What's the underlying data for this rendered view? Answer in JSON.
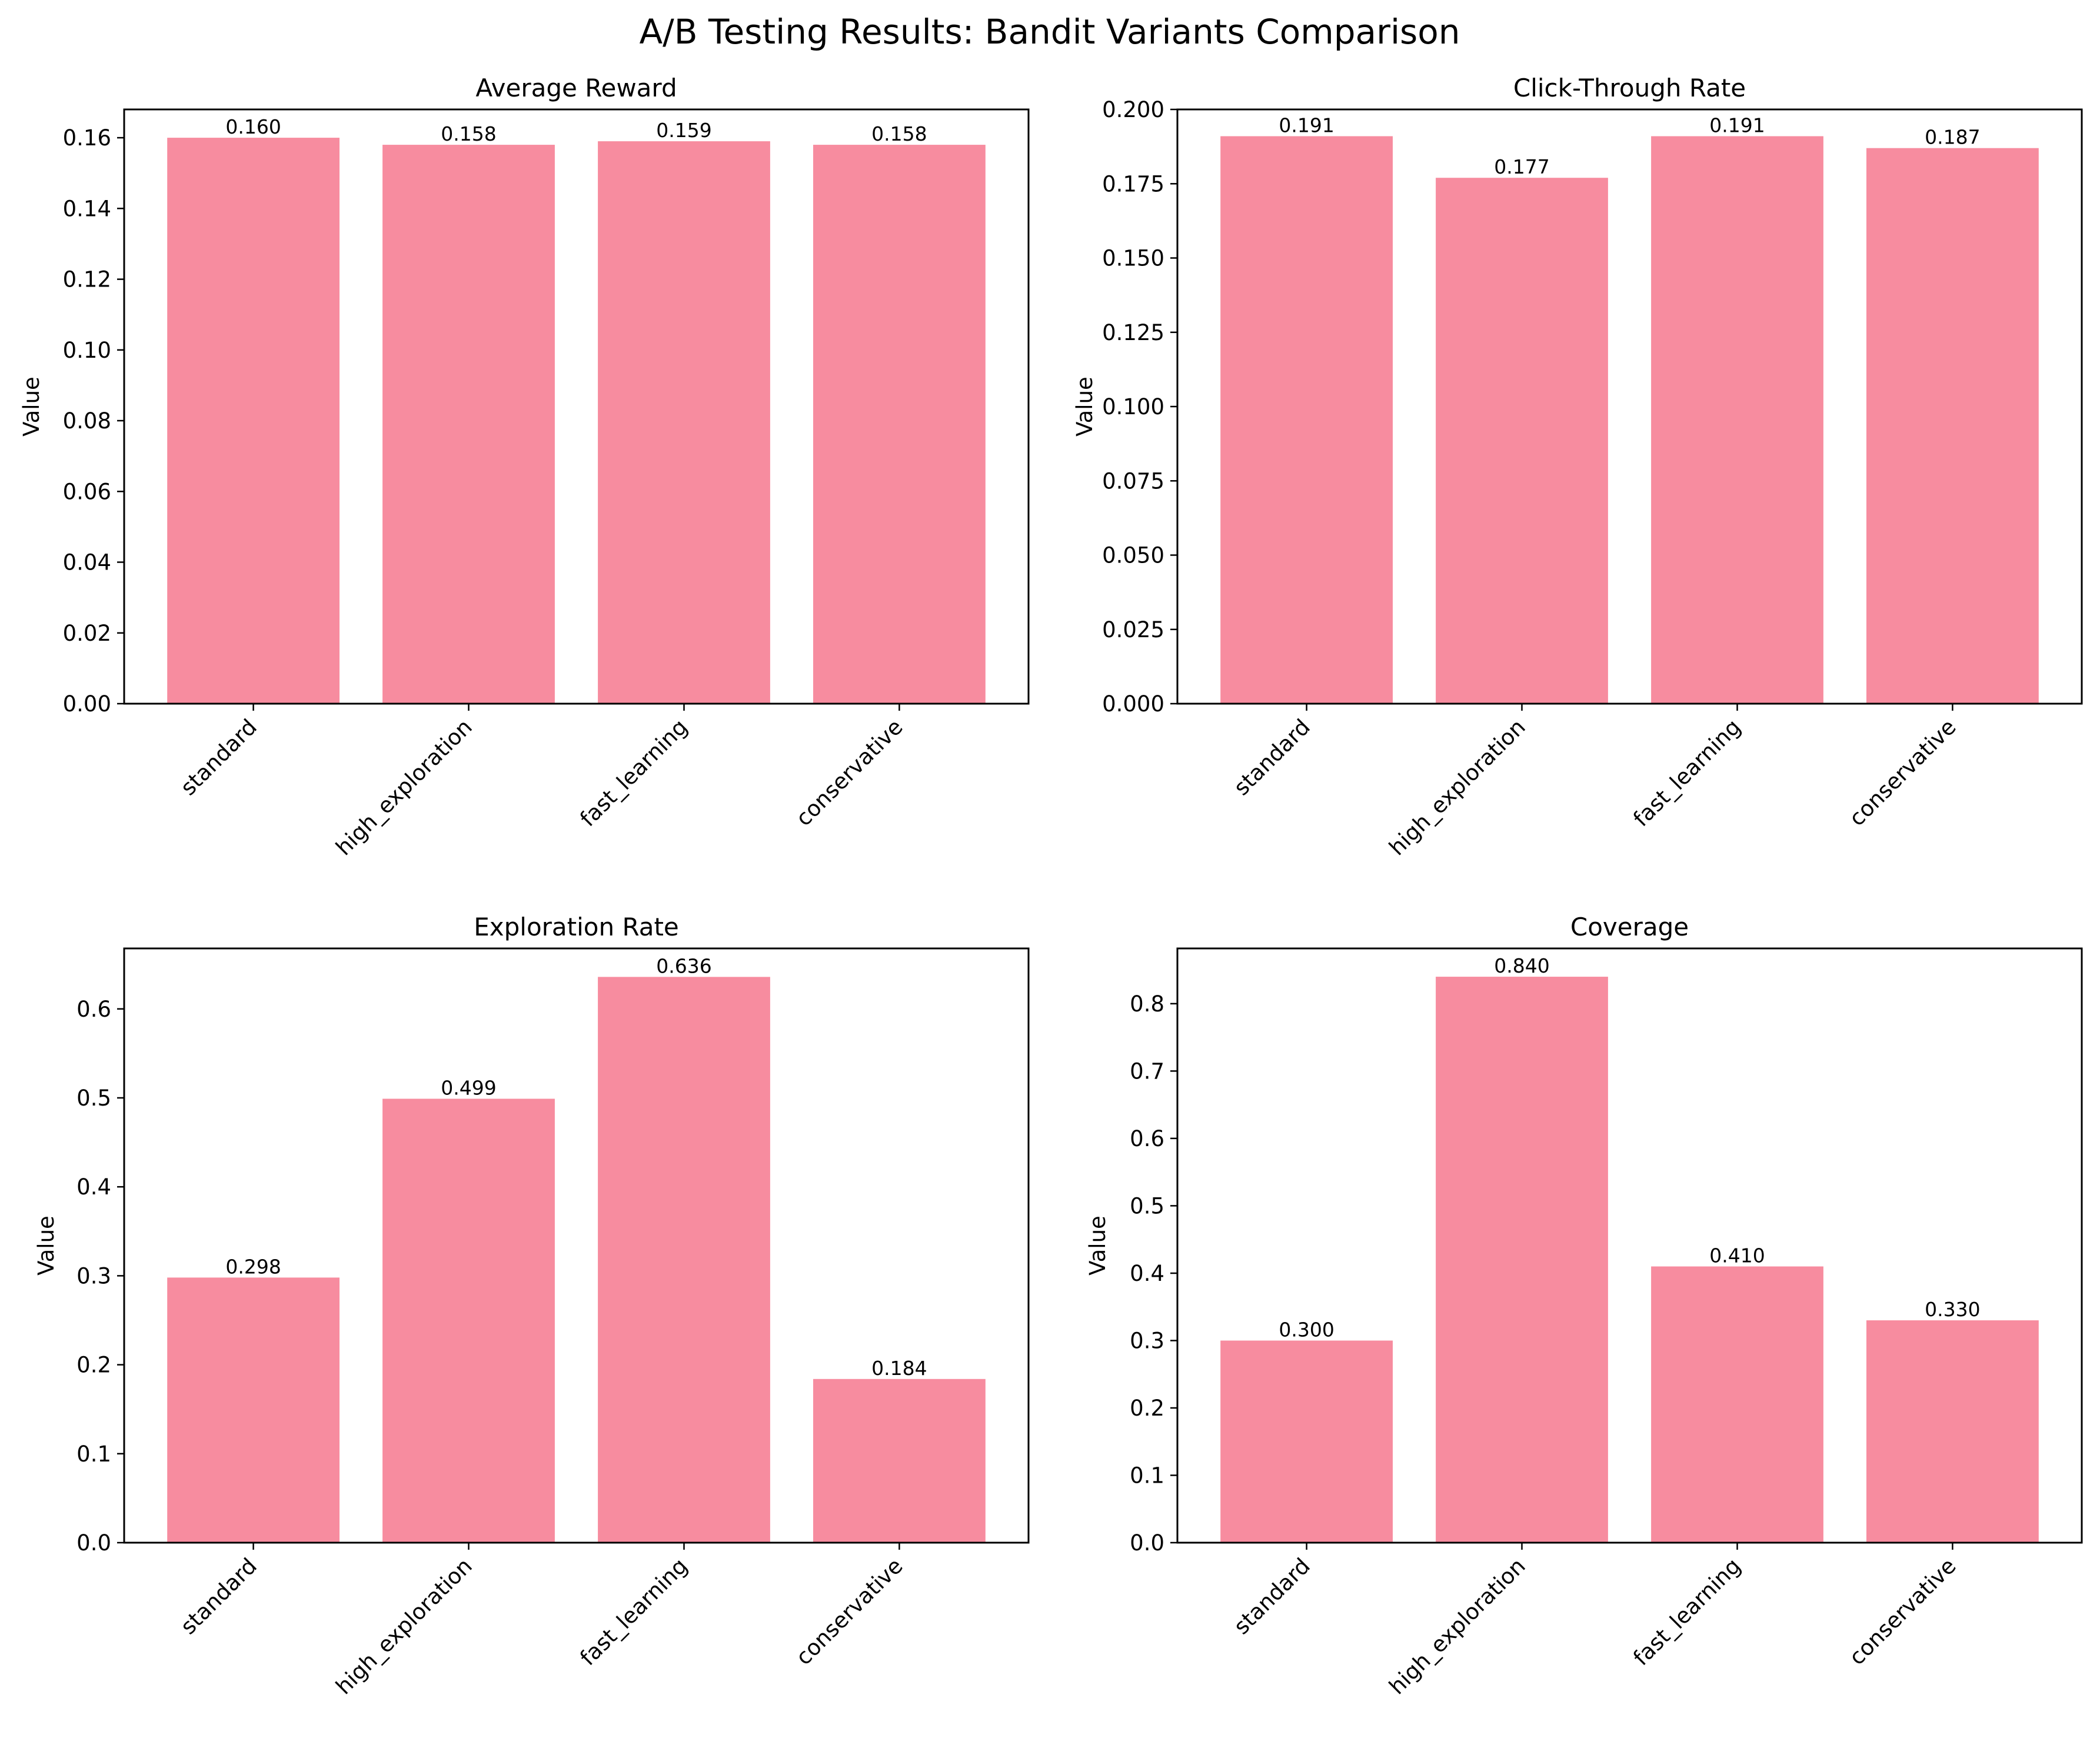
{
  "figure": {
    "title": "A/B Testing Results: Bandit Variants Comparison",
    "bar_color": "#f78c9f"
  },
  "chart_data": [
    {
      "type": "bar",
      "title": "Average Reward",
      "xlabel": "",
      "ylabel": "Value",
      "categories": [
        "standard",
        "high_exploration",
        "fast_learning",
        "conservative"
      ],
      "values": [
        0.16,
        0.158,
        0.159,
        0.158
      ],
      "value_labels": [
        "0.160",
        "0.158",
        "0.159",
        "0.158"
      ],
      "ylim": [
        0,
        0.168
      ],
      "yticks": [
        0.0,
        0.02,
        0.04,
        0.06,
        0.08,
        0.1,
        0.12,
        0.14,
        0.16
      ],
      "ytick_labels": [
        "0.00",
        "0.02",
        "0.04",
        "0.06",
        "0.08",
        "0.10",
        "0.12",
        "0.14",
        "0.16"
      ],
      "grid": false
    },
    {
      "type": "bar",
      "title": "Click-Through Rate",
      "xlabel": "",
      "ylabel": "Value",
      "categories": [
        "standard",
        "high_exploration",
        "fast_learning",
        "conservative"
      ],
      "values": [
        0.191,
        0.177,
        0.191,
        0.187
      ],
      "value_labels": [
        "0.191",
        "0.177",
        "0.191",
        "0.187"
      ],
      "ylim": [
        0,
        0.2
      ],
      "yticks": [
        0.0,
        0.025,
        0.05,
        0.075,
        0.1,
        0.125,
        0.15,
        0.175,
        0.2
      ],
      "ytick_labels": [
        "0.000",
        "0.025",
        "0.050",
        "0.075",
        "0.100",
        "0.125",
        "0.150",
        "0.175",
        "0.200"
      ],
      "grid": false
    },
    {
      "type": "bar",
      "title": "Exploration Rate",
      "xlabel": "",
      "ylabel": "Value",
      "categories": [
        "standard",
        "high_exploration",
        "fast_learning",
        "conservative"
      ],
      "values": [
        0.298,
        0.499,
        0.636,
        0.184
      ],
      "value_labels": [
        "0.298",
        "0.499",
        "0.636",
        "0.184"
      ],
      "ylim": [
        0,
        0.668
      ],
      "yticks": [
        0.0,
        0.1,
        0.2,
        0.3,
        0.4,
        0.5,
        0.6
      ],
      "ytick_labels": [
        "0.0",
        "0.1",
        "0.2",
        "0.3",
        "0.4",
        "0.5",
        "0.6"
      ],
      "grid": false
    },
    {
      "type": "bar",
      "title": "Coverage",
      "xlabel": "",
      "ylabel": "Value",
      "categories": [
        "standard",
        "high_exploration",
        "fast_learning",
        "conservative"
      ],
      "values": [
        0.3,
        0.84,
        0.41,
        0.33
      ],
      "value_labels": [
        "0.300",
        "0.840",
        "0.410",
        "0.330"
      ],
      "ylim": [
        0,
        0.882
      ],
      "yticks": [
        0.0,
        0.1,
        0.2,
        0.3,
        0.4,
        0.5,
        0.6,
        0.7,
        0.8
      ],
      "ytick_labels": [
        "0.0",
        "0.1",
        "0.2",
        "0.3",
        "0.4",
        "0.5",
        "0.6",
        "0.7",
        "0.8"
      ],
      "grid": false
    }
  ]
}
